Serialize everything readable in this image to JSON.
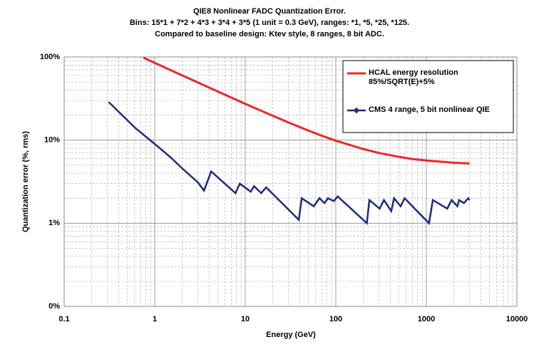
{
  "chart_data": {
    "type": "line",
    "title": "QIE8 Nonlinear FADC Quantization Error.",
    "subtitles": [
      "Bins: 15*1 + 7*2 + 4*3 + 3*4 + 3*5  (1 unit = 0.3 GeV), ranges: *1, *5, *25, *125.",
      "Compared to baseline design: Ktev style, 8 ranges, 8 bit ADC."
    ],
    "x_label": "Energy (GeV)",
    "y_label": "Quantization error (%, rms)",
    "x_scale": "log",
    "y_scale": "log",
    "xlim": [
      0.1,
      10000
    ],
    "ylim": [
      0.1,
      100
    ],
    "xticks": [
      0.1,
      1,
      10,
      100,
      1000,
      10000
    ],
    "yticks": [
      {
        "value": 0.1,
        "label": "0%"
      },
      {
        "value": 1,
        "label": "1%"
      },
      {
        "value": 10,
        "label": "10%"
      },
      {
        "value": 100,
        "label": "100%"
      }
    ],
    "grid": true,
    "minor_grid": true,
    "legend": "upper right",
    "series": [
      {
        "name": "HCAL energy resolution\n85%/SQRT(E)+5%",
        "color": "#e8292b",
        "x": [
          0.75,
          1,
          2,
          3,
          5,
          7,
          10,
          20,
          30,
          50,
          70,
          100,
          200,
          300,
          500,
          700,
          1000,
          2000,
          3000
        ],
        "values": [
          98.3,
          85.1,
          60.3,
          49.3,
          38.3,
          32.5,
          27.3,
          19.7,
          16.3,
          13.0,
          11.3,
          9.86,
          7.82,
          7.0,
          6.28,
          5.94,
          5.68,
          5.35,
          5.24
        ]
      },
      {
        "name": "CMS 4 range, 5 bit nonlinear QIE",
        "color": "#1f2a7a",
        "x": [
          0.31,
          0.61,
          1,
          1.5,
          2,
          3,
          3.5,
          4.2,
          7.8,
          8.7,
          11.5,
          12.5,
          15,
          17,
          39,
          42,
          57,
          66,
          75,
          82,
          95,
          105,
          220,
          235,
          305,
          340,
          410,
          440,
          520,
          575,
          1070,
          1180,
          1700,
          1900,
          2200,
          2300,
          2600,
          2900,
          3000
        ],
        "values": [
          28.8,
          14,
          9,
          6.2,
          4.6,
          3.1,
          2.47,
          4.2,
          2.3,
          3.0,
          2.4,
          2.8,
          2.3,
          2.7,
          1.1,
          2.0,
          1.6,
          2.0,
          1.75,
          2.0,
          1.85,
          2.1,
          1.0,
          1.9,
          1.5,
          1.9,
          1.4,
          2.0,
          1.6,
          2.0,
          1.0,
          1.9,
          1.5,
          1.9,
          1.6,
          1.9,
          1.75,
          2.0,
          1.9
        ]
      }
    ]
  }
}
